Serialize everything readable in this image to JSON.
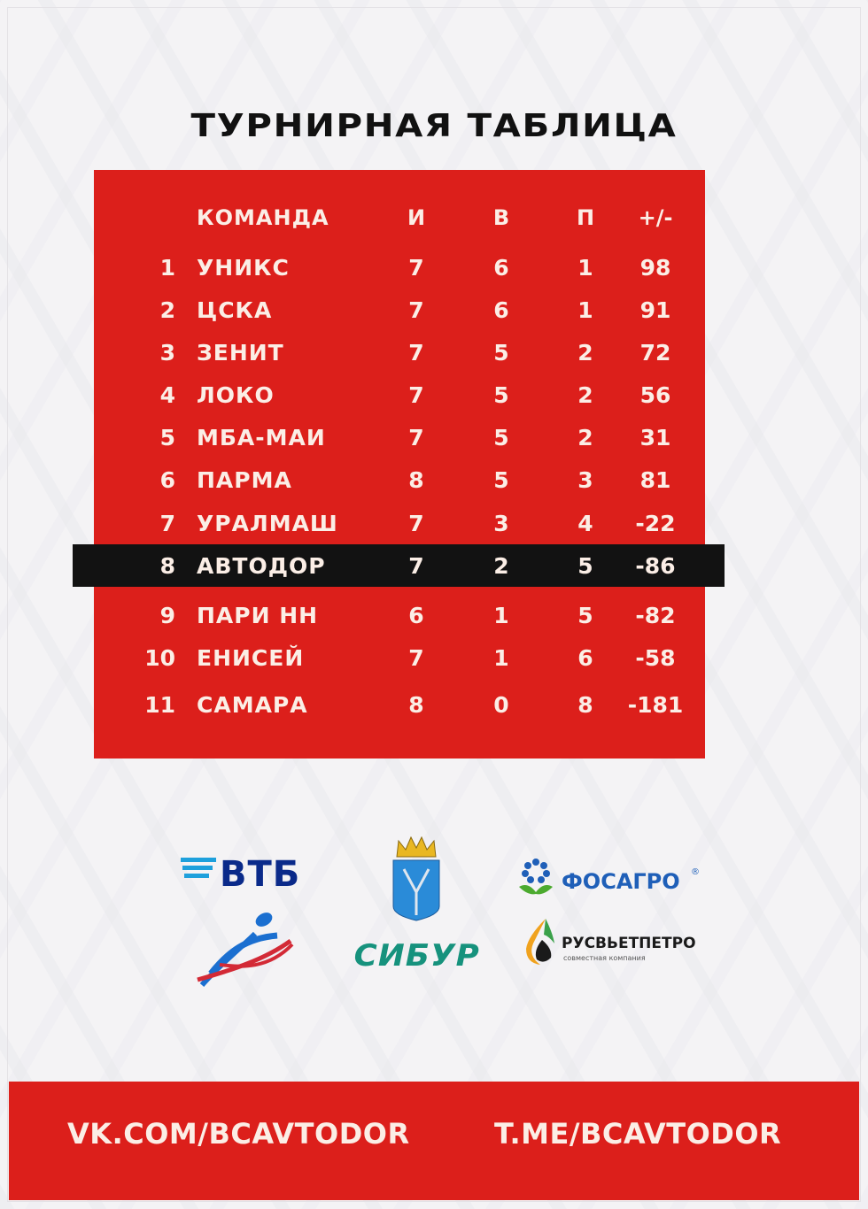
{
  "title": "ТУРНИРНАЯ ТАБЛИЦА",
  "table": {
    "headers": {
      "team": "КОМАНДА",
      "games": "И",
      "wins": "В",
      "losses": "П",
      "diff": "+/-"
    },
    "rows": [
      {
        "rank": "1",
        "team": "УНИКС",
        "games": "7",
        "wins": "6",
        "losses": "1",
        "diff": "98"
      },
      {
        "rank": "2",
        "team": "ЦСКА",
        "games": "7",
        "wins": "6",
        "losses": "1",
        "diff": "91"
      },
      {
        "rank": "3",
        "team": "ЗЕНИТ",
        "games": "7",
        "wins": "5",
        "losses": "2",
        "diff": "72"
      },
      {
        "rank": "4",
        "team": "ЛОКО",
        "games": "7",
        "wins": "5",
        "losses": "2",
        "diff": "56"
      },
      {
        "rank": "5",
        "team": "МБА-МАИ",
        "games": "7",
        "wins": "5",
        "losses": "2",
        "diff": "31"
      },
      {
        "rank": "6",
        "team": "ПАРМА",
        "games": "8",
        "wins": "5",
        "losses": "3",
        "diff": "81"
      },
      {
        "rank": "7",
        "team": "УРАЛМАШ",
        "games": "7",
        "wins": "3",
        "losses": "4",
        "diff": "-22"
      },
      {
        "rank": "8",
        "team": "АВТОДОР",
        "games": "7",
        "wins": "2",
        "losses": "5",
        "diff": "-86"
      },
      {
        "rank": "9",
        "team": "ПАРИ НН",
        "games": "6",
        "wins": "1",
        "losses": "5",
        "diff": "-82"
      },
      {
        "rank": "10",
        "team": "ЕНИСЕЙ",
        "games": "7",
        "wins": "1",
        "losses": "6",
        "diff": "-58"
      },
      {
        "rank": "11",
        "team": "САМАРА",
        "games": "8",
        "wins": "0",
        "losses": "8",
        "diff": "-181"
      }
    ],
    "highlighted_rank": "8"
  },
  "sponsors": {
    "vtb": "ВТБ",
    "sibur": "СИБУР",
    "phosagro": "ФОСАГРО",
    "phosagro_mark": "®",
    "rusvietpetro": "РУСВЬЕТПЕТРО",
    "rusvietpetro_sub": "совместная компания"
  },
  "footer": {
    "vk": "VK.COM/BCAVTODOR",
    "telegram": "T.ME/BCAVTODOR"
  },
  "colors": {
    "red": "#dc1f1b",
    "highlight": "#121212",
    "text_light": "#fbeee6"
  }
}
